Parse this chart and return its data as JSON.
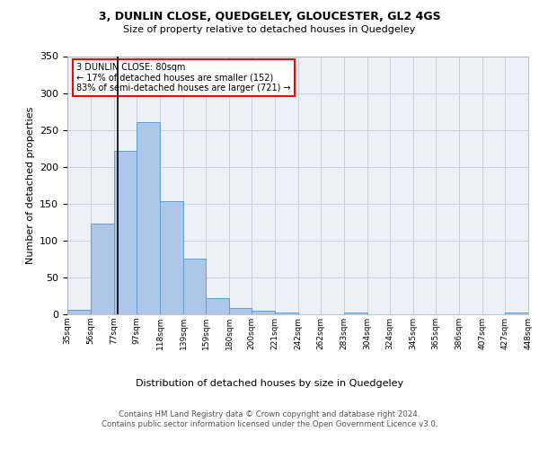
{
  "title1": "3, DUNLIN CLOSE, QUEDGELEY, GLOUCESTER, GL2 4GS",
  "title2": "Size of property relative to detached houses in Quedgeley",
  "xlabel": "Distribution of detached houses by size in Quedgeley",
  "ylabel": "Number of detached properties",
  "bins": [
    35,
    56,
    77,
    97,
    118,
    139,
    159,
    180,
    200,
    221,
    242,
    262,
    283,
    304,
    324,
    345,
    365,
    386,
    407,
    427,
    448
  ],
  "counts": [
    6,
    123,
    222,
    260,
    153,
    76,
    22,
    9,
    5,
    3,
    0,
    0,
    2,
    0,
    0,
    0,
    0,
    0,
    0,
    3
  ],
  "bar_color": "#aec6e8",
  "bar_edge_color": "#5a9fd4",
  "grid_color": "#c8d0e0",
  "bg_color": "#eef0f8",
  "vline_x": 80,
  "vline_color": "black",
  "annotation_text": "3 DUNLIN CLOSE: 80sqm\n← 17% of detached houses are smaller (152)\n83% of semi-detached houses are larger (721) →",
  "annotation_box_color": "white",
  "annotation_box_edge": "red",
  "ylim": [
    0,
    350
  ],
  "yticks": [
    0,
    50,
    100,
    150,
    200,
    250,
    300,
    350
  ],
  "tick_labels": [
    "35sqm",
    "56sqm",
    "77sqm",
    "97sqm",
    "118sqm",
    "139sqm",
    "159sqm",
    "180sqm",
    "200sqm",
    "221sqm",
    "242sqm",
    "262sqm",
    "283sqm",
    "304sqm",
    "324sqm",
    "345sqm",
    "365sqm",
    "386sqm",
    "407sqm",
    "427sqm",
    "448sqm"
  ],
  "footer": "Contains HM Land Registry data © Crown copyright and database right 2024.\nContains public sector information licensed under the Open Government Licence v3.0."
}
